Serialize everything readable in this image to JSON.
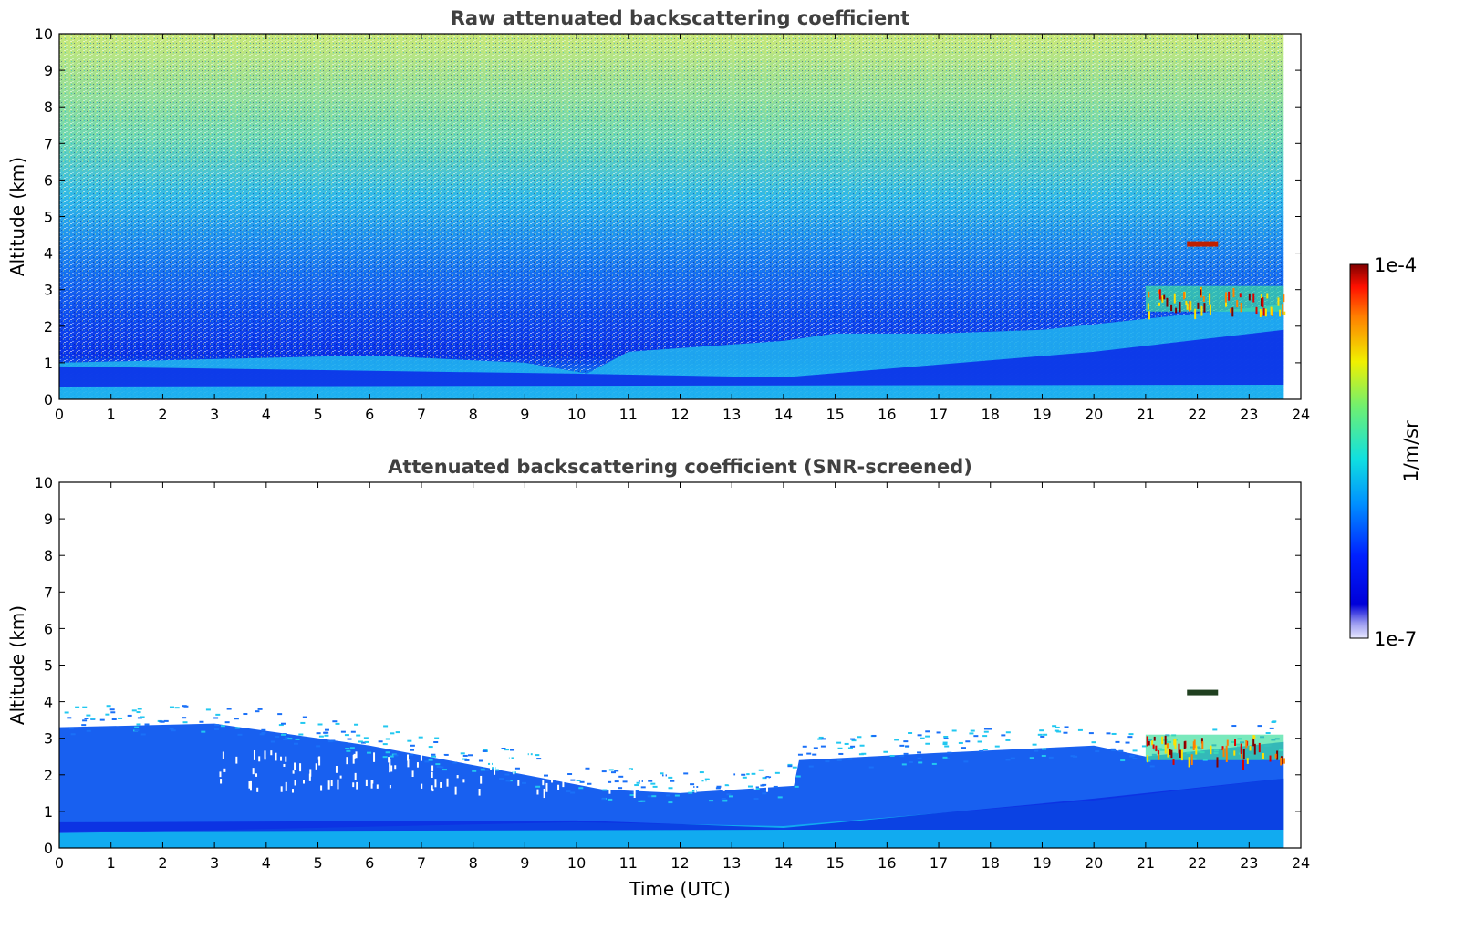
{
  "chart_data": [
    {
      "type": "heatmap",
      "title": "Raw attenuated backscattering coefficient",
      "xlabel": "",
      "ylabel": "Altitude (km)",
      "xlim": [
        0,
        24
      ],
      "ylim": [
        0,
        10
      ],
      "xticks": [
        "0",
        "1",
        "2",
        "3",
        "4",
        "5",
        "6",
        "7",
        "8",
        "9",
        "10",
        "11",
        "12",
        "13",
        "14",
        "15",
        "16",
        "17",
        "18",
        "19",
        "20",
        "21",
        "22",
        "23",
        "24"
      ],
      "yticks": [
        "0",
        "1",
        "2",
        "3",
        "4",
        "5",
        "6",
        "7",
        "8",
        "9",
        "10"
      ],
      "data_extent_hours": [
        0,
        23.67
      ],
      "features": {
        "boundary_layer_top_km": [
          [
            0,
            1.0
          ],
          [
            3,
            1.1
          ],
          [
            6,
            1.2
          ],
          [
            9,
            1.0
          ],
          [
            10.2,
            0.7
          ],
          [
            11,
            1.3
          ],
          [
            14,
            1.6
          ],
          [
            15,
            1.8
          ],
          [
            17,
            1.8
          ],
          [
            19,
            1.9
          ],
          [
            21,
            2.2
          ],
          [
            23.67,
            2.6
          ]
        ],
        "dense_low_layer_km": [
          [
            0,
            0.9
          ],
          [
            10,
            0.7
          ],
          [
            14,
            0.6
          ],
          [
            20,
            1.3
          ],
          [
            23.67,
            1.9
          ]
        ],
        "cloud_layer": {
          "time_range_h": [
            21.0,
            23.67
          ],
          "base_km": 2.4,
          "top_km": 3.1
        },
        "elevated_cloud": {
          "time_range_h": [
            21.8,
            22.4
          ],
          "altitude_km": 4.25
        }
      },
      "noise_floor_increasing_with_altitude": true
    },
    {
      "type": "heatmap",
      "title": "Attenuated backscattering coefficient (SNR-screened)",
      "xlabel": "Time (UTC)",
      "ylabel": "Altitude (km)",
      "xlim": [
        0,
        24
      ],
      "ylim": [
        0,
        10
      ],
      "xticks": [
        "0",
        "1",
        "2",
        "3",
        "4",
        "5",
        "6",
        "7",
        "8",
        "9",
        "10",
        "11",
        "12",
        "13",
        "14",
        "15",
        "16",
        "17",
        "18",
        "19",
        "20",
        "21",
        "22",
        "23",
        "24"
      ],
      "yticks": [
        "0",
        "1",
        "2",
        "3",
        "4",
        "5",
        "6",
        "7",
        "8",
        "9",
        "10"
      ],
      "data_extent_hours": [
        0,
        23.67
      ],
      "features": {
        "screened_signal_top_km": [
          [
            0,
            3.3
          ],
          [
            3,
            3.4
          ],
          [
            6,
            2.8
          ],
          [
            9,
            2.0
          ],
          [
            10.5,
            1.6
          ],
          [
            12,
            1.5
          ],
          [
            14.2,
            1.7
          ],
          [
            14.3,
            2.4
          ],
          [
            17,
            2.6
          ],
          [
            20,
            2.8
          ],
          [
            21,
            2.5
          ],
          [
            23.67,
            2.9
          ]
        ],
        "cloud_layer": {
          "time_range_h": [
            21.0,
            23.67
          ],
          "base_km": 2.4,
          "top_km": 3.1
        },
        "elevated_cloud": {
          "time_range_h": [
            21.8,
            22.4
          ],
          "altitude_km": 4.25
        }
      }
    }
  ],
  "colorbar": {
    "max_label": "1e-4",
    "min_label": "1e-7",
    "label": "1/m/sr",
    "colormap": "jet",
    "scale": "log",
    "range": [
      1e-07,
      0.0001
    ]
  },
  "colors": {
    "title": "#404040",
    "background": "#ffffff",
    "axis": "#000000"
  }
}
